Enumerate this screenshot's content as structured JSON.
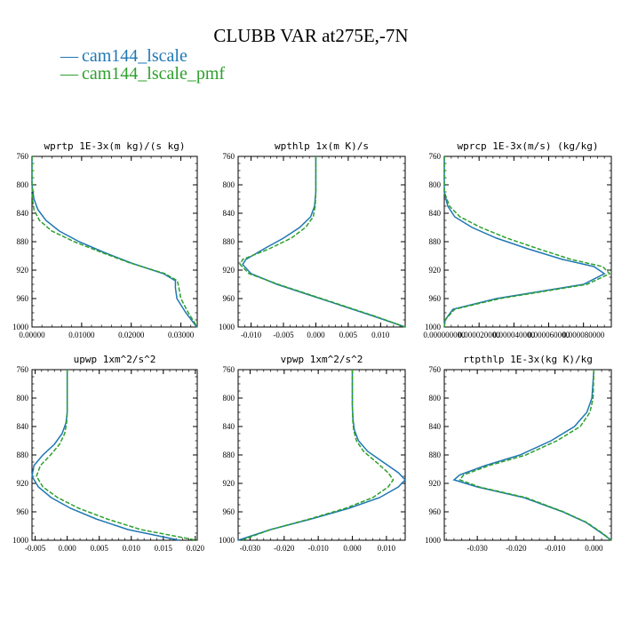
{
  "title": "CLUBB VAR at275E,-7N",
  "legend": [
    {
      "label": "cam144_lscale",
      "color": "#1f77b4",
      "dash": "solid"
    },
    {
      "label": "cam144_lscale_pmf",
      "color": "#2ca02c",
      "dash": "dashed"
    }
  ],
  "chart_data": [
    {
      "type": "line",
      "title": "wprtp  1E-3x(m kg)/(s kg)",
      "xlim": [
        0.0,
        0.0333
      ],
      "ylim": [
        760,
        1000
      ],
      "y_inverted": true,
      "xticks": [
        "0.00000",
        "0.01000",
        "0.02000",
        "0.03000"
      ],
      "xtick_values": [
        0.0,
        0.01,
        0.02,
        0.03
      ],
      "yticks": [
        "760",
        "800",
        "840",
        "880",
        "920",
        "960",
        "1000"
      ],
      "series": [
        {
          "name": "cam144_lscale",
          "x": [
            0.0,
            0.0,
            0.0004,
            0.0012,
            0.0028,
            0.0055,
            0.0095,
            0.0145,
            0.02,
            0.0265,
            0.0289,
            0.0289,
            0.0292,
            0.031,
            0.0332
          ],
          "y": [
            760,
            800,
            820,
            835,
            850,
            865,
            880,
            895,
            910,
            925,
            935,
            945,
            960,
            980,
            1000
          ]
        },
        {
          "name": "cam144_lscale_pmf",
          "x": [
            0.0,
            0.0,
            0.0001,
            0.0004,
            0.0015,
            0.004,
            0.0085,
            0.014,
            0.0198,
            0.0268,
            0.0293,
            0.0296,
            0.03,
            0.0315,
            0.0333
          ],
          "y": [
            760,
            800,
            820,
            835,
            850,
            865,
            880,
            895,
            910,
            925,
            935,
            945,
            960,
            980,
            1000
          ]
        }
      ]
    },
    {
      "type": "line",
      "title": "wpthlp  1x(m K)/s",
      "xlim": [
        -0.012,
        0.0138
      ],
      "ylim": [
        760,
        1000
      ],
      "y_inverted": true,
      "xticks": [
        "-0.010",
        "-0.005",
        "0.000",
        "0.005",
        "0.010"
      ],
      "xtick_values": [
        -0.01,
        -0.005,
        0.0,
        0.005,
        0.01
      ],
      "yticks": [
        "760",
        "800",
        "840",
        "880",
        "920",
        "960",
        "1000"
      ],
      "series": [
        {
          "name": "cam144_lscale",
          "x": [
            0.0,
            0.0,
            -0.0002,
            -0.0008,
            -0.0025,
            -0.005,
            -0.008,
            -0.0108,
            -0.0113,
            -0.01,
            -0.006,
            -0.001,
            0.004,
            0.009,
            0.0138
          ],
          "y": [
            760,
            810,
            830,
            845,
            860,
            875,
            890,
            905,
            912,
            925,
            940,
            955,
            970,
            985,
            1000
          ]
        },
        {
          "name": "cam144_lscale_pmf",
          "x": [
            0.0,
            0.0,
            -0.0001,
            -0.0004,
            -0.0016,
            -0.0038,
            -0.0072,
            -0.0113,
            -0.0117,
            -0.0103,
            -0.0058,
            -0.0008,
            0.0042,
            0.0092,
            0.0138
          ],
          "y": [
            760,
            810,
            830,
            845,
            860,
            875,
            890,
            905,
            912,
            925,
            940,
            955,
            970,
            985,
            1000
          ]
        }
      ]
    },
    {
      "type": "line",
      "title": "wprcp  1E-3x(m/s) (kg/kg)",
      "xlim": [
        0.0,
        9.6e-05
      ],
      "ylim": [
        760,
        1000
      ],
      "y_inverted": true,
      "xticks": [
        "0.000000000",
        "0.000020000",
        "0.000040000",
        "0.000060000",
        "0.000080000"
      ],
      "xtick_values": [
        0.0,
        2e-05,
        4e-05,
        6e-05,
        8e-05
      ],
      "yticks": [
        "760",
        "800",
        "840",
        "880",
        "920",
        "960",
        "1000"
      ],
      "series": [
        {
          "name": "cam144_lscale",
          "x": [
            0.0,
            0.0,
            2e-06,
            6e-06,
            1.6e-05,
            3e-05,
            4.8e-05,
            6.8e-05,
            8.6e-05,
            9.2e-05,
            8e-05,
            3e-05,
            5e-06,
            5e-07,
            0.0
          ],
          "y": [
            760,
            810,
            830,
            845,
            860,
            875,
            890,
            905,
            915,
            925,
            940,
            960,
            975,
            990,
            1000
          ]
        },
        {
          "name": "cam144_lscale_pmf",
          "x": [
            0.0,
            0.0,
            3e-06,
            9e-06,
            2.1e-05,
            3.6e-05,
            5.4e-05,
            7.3e-05,
            9.1e-05,
            9.5e-05,
            8.2e-05,
            3.2e-05,
            6e-06,
            5e-07,
            0.0
          ],
          "y": [
            760,
            810,
            830,
            845,
            860,
            875,
            890,
            905,
            915,
            925,
            940,
            960,
            975,
            990,
            1000
          ]
        }
      ]
    },
    {
      "type": "line",
      "title": "upwp  1xm^2/s^2",
      "xlim": [
        -0.0055,
        0.0203
      ],
      "ylim": [
        760,
        1000
      ],
      "y_inverted": true,
      "xticks": [
        "-0.005",
        "0.000",
        "0.005",
        "0.010",
        "0.015",
        "0.020"
      ],
      "xtick_values": [
        -0.005,
        0.0,
        0.005,
        0.01,
        0.015,
        0.02
      ],
      "yticks": [
        "760",
        "800",
        "840",
        "880",
        "920",
        "960",
        "1000"
      ],
      "series": [
        {
          "name": "cam144_lscale",
          "x": [
            0.0,
            0.0,
            -0.0002,
            -0.0008,
            -0.002,
            -0.0038,
            -0.0052,
            -0.0055,
            -0.0045,
            -0.0025,
            0.0005,
            0.0045,
            0.0095,
            0.0175
          ],
          "y": [
            760,
            820,
            835,
            850,
            865,
            880,
            895,
            910,
            925,
            940,
            955,
            970,
            985,
            1000
          ]
        },
        {
          "name": "cam144_lscale_pmf",
          "x": [
            0.0,
            0.0,
            -0.0001,
            -0.0004,
            -0.0012,
            -0.0026,
            -0.0042,
            -0.0048,
            -0.0038,
            -0.0015,
            0.0018,
            0.0062,
            0.0115,
            0.0202
          ],
          "y": [
            760,
            820,
            835,
            850,
            865,
            880,
            895,
            910,
            925,
            940,
            955,
            970,
            985,
            1000
          ]
        }
      ]
    },
    {
      "type": "line",
      "title": "vpwp  1xm^2/s^2",
      "xlim": [
        -0.0335,
        0.0155
      ],
      "ylim": [
        760,
        1000
      ],
      "y_inverted": true,
      "xticks": [
        "-0.030",
        "-0.020",
        "-0.010",
        "0.000",
        "0.010"
      ],
      "xtick_values": [
        -0.03,
        -0.02,
        -0.01,
        0.0,
        0.01
      ],
      "yticks": [
        "760",
        "800",
        "840",
        "880",
        "920",
        "960",
        "1000"
      ],
      "series": [
        {
          "name": "cam144_lscale",
          "x": [
            0.0,
            0.0,
            0.0002,
            0.0006,
            0.0018,
            0.0045,
            0.009,
            0.0135,
            0.0155,
            0.0135,
            0.008,
            -0.001,
            -0.012,
            -0.024,
            -0.0335
          ],
          "y": [
            760,
            810,
            830,
            845,
            860,
            875,
            890,
            905,
            915,
            925,
            940,
            955,
            970,
            985,
            1000
          ]
        },
        {
          "name": "cam144_lscale_pmf",
          "x": [
            0.0,
            0.0,
            0.0001,
            0.0004,
            0.0012,
            0.0033,
            0.007,
            0.0105,
            0.012,
            0.0105,
            0.006,
            -0.002,
            -0.0125,
            -0.024,
            -0.0325
          ],
          "y": [
            760,
            810,
            830,
            845,
            860,
            875,
            890,
            905,
            915,
            925,
            940,
            955,
            970,
            985,
            1000
          ]
        }
      ]
    },
    {
      "type": "line",
      "title": "rtpthlp  1E-3x(kg K)/kg",
      "xlim": [
        -0.0385,
        0.0045
      ],
      "ylim": [
        760,
        1000
      ],
      "y_inverted": true,
      "xticks": [
        "-0.030",
        "-0.020",
        "-0.010",
        "0.000"
      ],
      "xtick_values": [
        -0.03,
        -0.02,
        -0.01,
        0.0
      ],
      "yticks": [
        "760",
        "800",
        "840",
        "880",
        "920",
        "960",
        "1000"
      ],
      "series": [
        {
          "name": "cam144_lscale",
          "x": [
            0.0,
            -0.0005,
            -0.0018,
            -0.005,
            -0.011,
            -0.019,
            -0.028,
            -0.0345,
            -0.036,
            -0.03,
            -0.018,
            -0.008,
            -0.002,
            0.002,
            0.0045
          ],
          "y": [
            760,
            800,
            820,
            840,
            860,
            880,
            895,
            908,
            915,
            925,
            940,
            960,
            975,
            990,
            1000
          ]
        },
        {
          "name": "cam144_lscale_pmf",
          "x": [
            0.0,
            -0.0002,
            -0.001,
            -0.0035,
            -0.0095,
            -0.0175,
            -0.027,
            -0.0335,
            -0.0345,
            -0.0295,
            -0.0175,
            -0.0078,
            -0.0018,
            0.0022,
            0.0045
          ],
          "y": [
            760,
            800,
            820,
            840,
            860,
            880,
            895,
            908,
            915,
            925,
            940,
            960,
            975,
            990,
            1000
          ]
        }
      ]
    }
  ]
}
